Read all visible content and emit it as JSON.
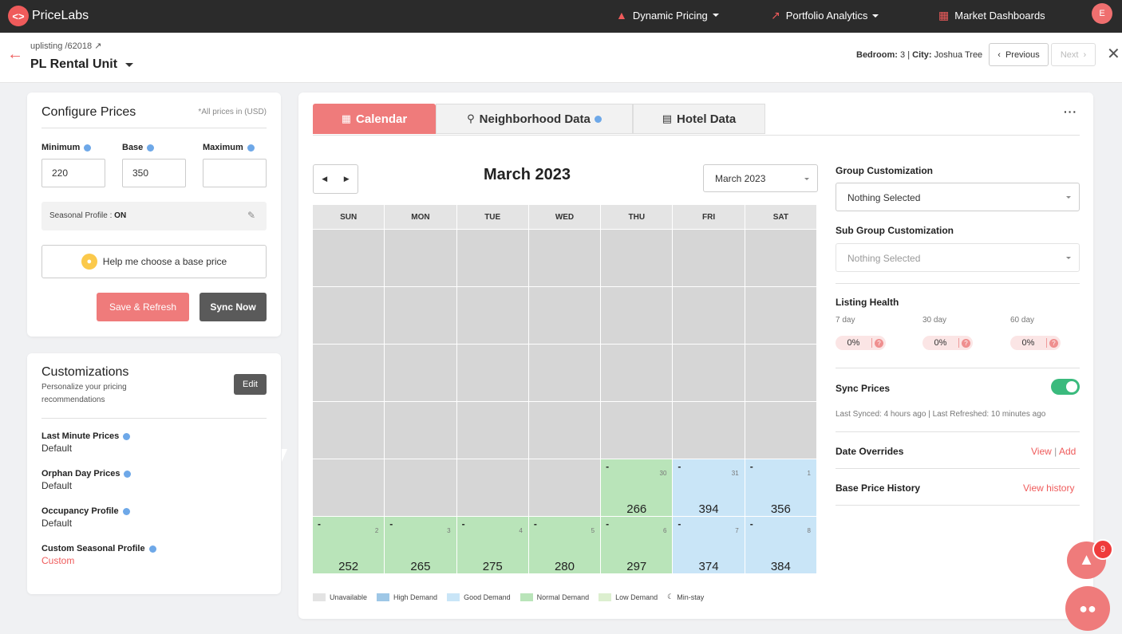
{
  "nav": {
    "brand": "PriceLabs",
    "items": [
      "Dynamic Pricing",
      "Portfolio Analytics",
      "Market Dashboards"
    ],
    "avatar_initial": "E"
  },
  "header": {
    "breadcrumb": "uplisting /62018",
    "unit_name": "PL Rental Unit",
    "bedroom_label": "Bedroom:",
    "bedroom_value": "3",
    "city_label": "City:",
    "city_value": "Joshua Tree",
    "prev_label": "Previous",
    "next_label": "Next"
  },
  "configure": {
    "title": "Configure Prices",
    "note": "*All prices in (USD)",
    "min_label": "Minimum",
    "min_value": "220",
    "base_label": "Base",
    "base_value": "350",
    "max_label": "Maximum",
    "max_value": "",
    "seasonal_label": "Seasonal Profile :",
    "seasonal_value": "ON",
    "help_label": "Help me choose a base price",
    "save_label": "Save & Refresh",
    "sync_label": "Sync Now"
  },
  "customizations": {
    "title": "Customizations",
    "subtitle": "Personalize your pricing recommendations",
    "edit_label": "Edit",
    "items": [
      {
        "label": "Last Minute Prices",
        "value": "Default"
      },
      {
        "label": "Orphan Day Prices",
        "value": "Default"
      },
      {
        "label": "Occupancy Profile",
        "value": "Default"
      },
      {
        "label": "Custom Seasonal Profile",
        "value": "Custom"
      }
    ]
  },
  "tabs": [
    "Calendar",
    "Neighborhood Data",
    "Hotel Data"
  ],
  "calendar": {
    "month_title": "March 2023",
    "month_select": "March 2023",
    "dow": [
      "SUN",
      "MON",
      "TUE",
      "WED",
      "THU",
      "FRI",
      "SAT"
    ],
    "weeks": [
      [
        {
          "s": "u"
        },
        {
          "s": "u"
        },
        {
          "s": "u"
        },
        {
          "s": "u"
        },
        {
          "s": "u"
        },
        {
          "s": "u"
        },
        {
          "s": "u"
        }
      ],
      [
        {
          "s": "u"
        },
        {
          "s": "u"
        },
        {
          "s": "u"
        },
        {
          "s": "u"
        },
        {
          "s": "u"
        },
        {
          "s": "u"
        },
        {
          "s": "u"
        }
      ],
      [
        {
          "s": "u"
        },
        {
          "s": "u"
        },
        {
          "s": "u"
        },
        {
          "s": "u"
        },
        {
          "s": "u"
        },
        {
          "s": "u"
        },
        {
          "s": "u"
        }
      ],
      [
        {
          "s": "u"
        },
        {
          "s": "u"
        },
        {
          "s": "u"
        },
        {
          "s": "u"
        },
        {
          "s": "u"
        },
        {
          "s": "u"
        },
        {
          "s": "u"
        }
      ],
      [
        {
          "s": "u"
        },
        {
          "s": "u"
        },
        {
          "s": "u"
        },
        {
          "s": "u"
        },
        {
          "s": "n",
          "day": "30",
          "price": "266"
        },
        {
          "s": "g",
          "day": "31",
          "price": "394"
        },
        {
          "s": "g",
          "day": "1",
          "price": "356"
        }
      ],
      [
        {
          "s": "n",
          "day": "2",
          "price": "252"
        },
        {
          "s": "n",
          "day": "3",
          "price": "265"
        },
        {
          "s": "n",
          "day": "4",
          "price": "275"
        },
        {
          "s": "n",
          "day": "5",
          "price": "280"
        },
        {
          "s": "n",
          "day": "6",
          "price": "297"
        },
        {
          "s": "g",
          "day": "7",
          "price": "374"
        },
        {
          "s": "g",
          "day": "8",
          "price": "384"
        }
      ]
    ],
    "legend": [
      {
        "label": "Unavailable",
        "color": "#e3e3e3"
      },
      {
        "label": "High Demand",
        "color": "#9ec7e6"
      },
      {
        "label": "Good Demand",
        "color": "#c9e5f7"
      },
      {
        "label": "Normal Demand",
        "color": "#b9e4b9"
      },
      {
        "label": "Low Demand",
        "color": "#dcefcf"
      },
      {
        "label": "Min-stay",
        "color": ""
      }
    ]
  },
  "right_panel": {
    "group_label": "Group Customization",
    "group_value": "Nothing Selected",
    "subgroup_label": "Sub Group Customization",
    "subgroup_value": "Nothing Selected",
    "health_label": "Listing Health",
    "health": [
      {
        "period": "7 day",
        "value": "0%"
      },
      {
        "period": "30 day",
        "value": "0%"
      },
      {
        "period": "60 day",
        "value": "0%"
      }
    ],
    "sync_label": "Sync Prices",
    "synced_text": "Last Synced: 4 hours ago | Last Refreshed: 10 minutes ago",
    "overrides_label": "Date Overrides",
    "view_label": "View",
    "add_label": "Add",
    "history_label": "Base Price History",
    "view_history_label": "View history"
  },
  "floating": {
    "badge_count": "9"
  }
}
